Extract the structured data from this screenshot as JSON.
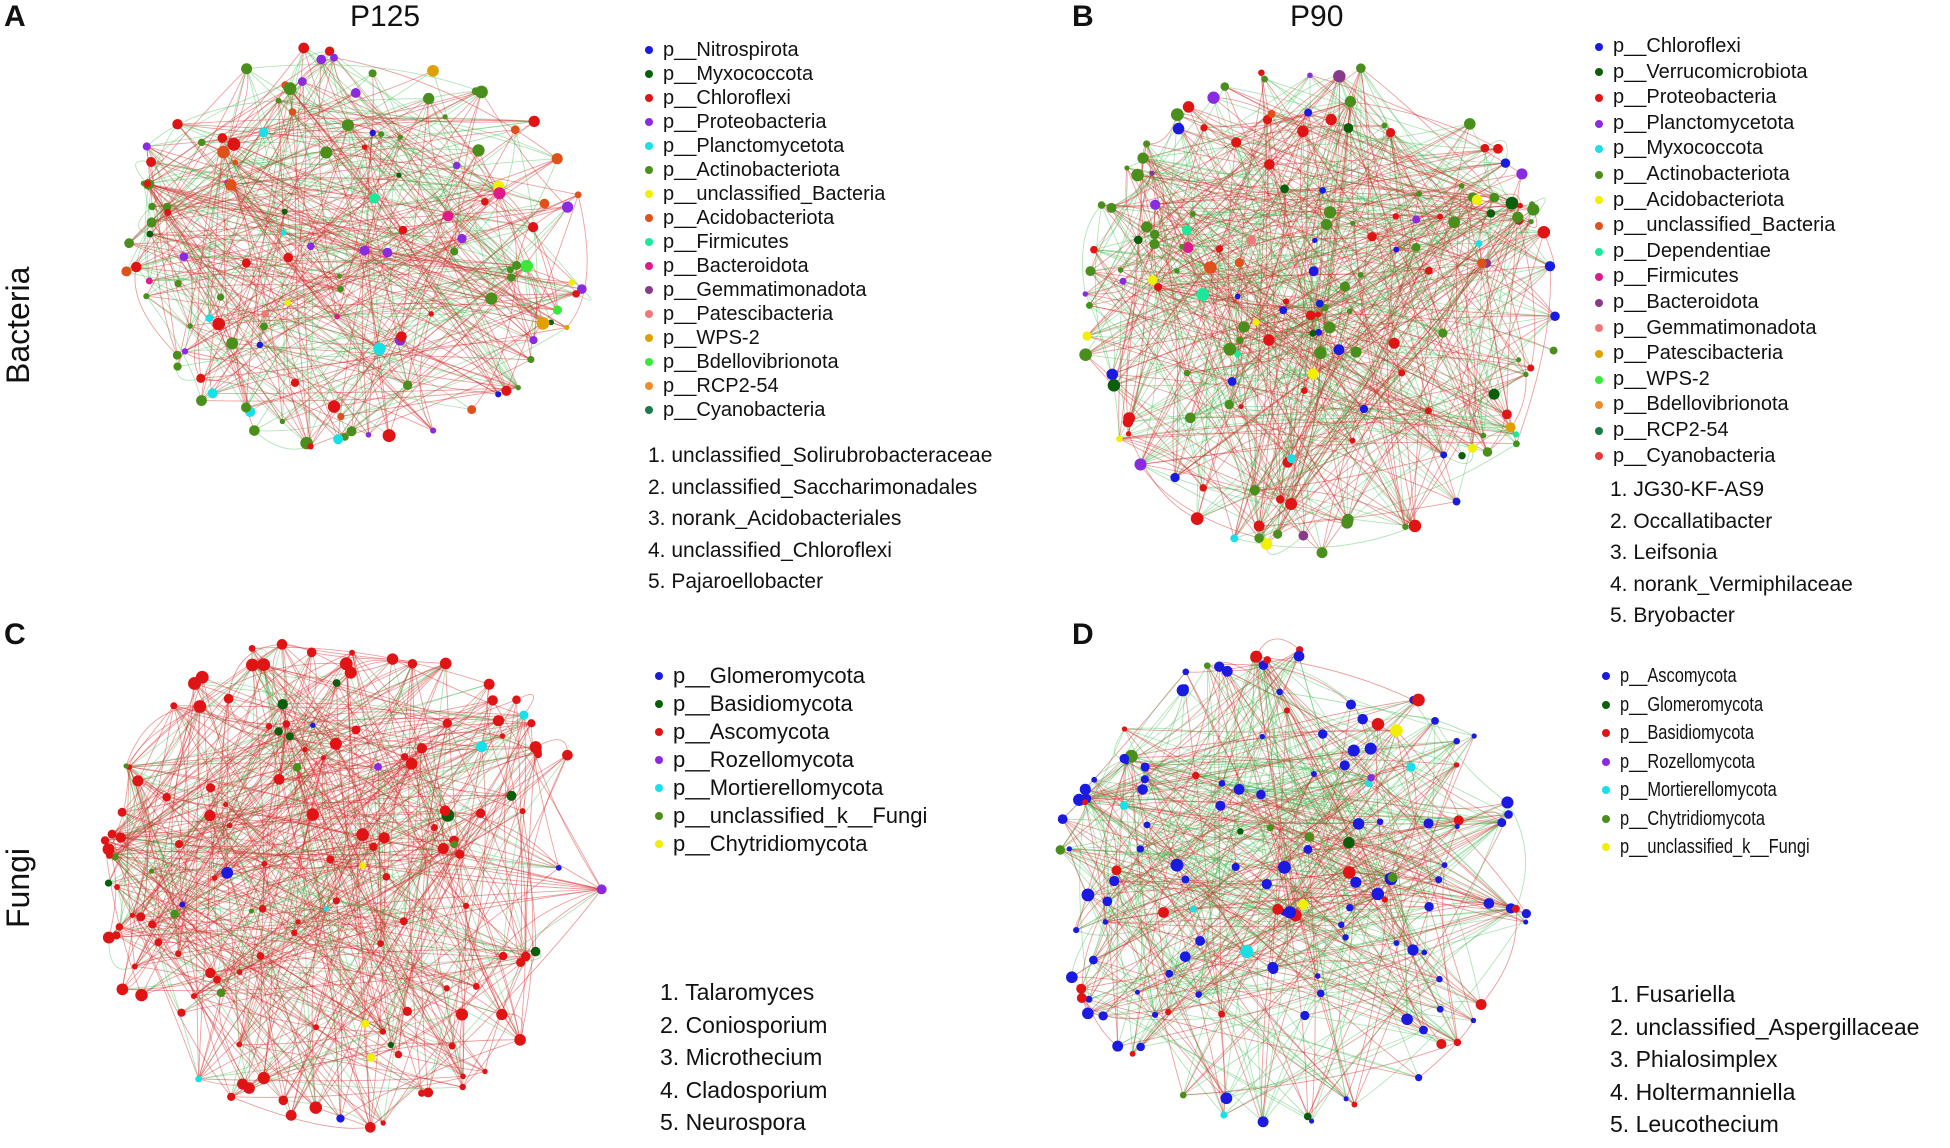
{
  "panels": [
    {
      "letter": "A",
      "title": "P125",
      "row_label": "Bacteria",
      "legend": [
        {
          "label": "p__Nitrospirota",
          "color": "#1a1ae0"
        },
        {
          "label": "p__Myxococcota",
          "color": "#0b5e0b"
        },
        {
          "label": "p__Chloroflexi",
          "color": "#e01414"
        },
        {
          "label": "p__Proteobacteria",
          "color": "#8a2be2"
        },
        {
          "label": "p__Planctomycetota",
          "color": "#19e0e6"
        },
        {
          "label": "p__Actinobacteriota",
          "color": "#4a8f1c"
        },
        {
          "label": "p__unclassified_Bacteria",
          "color": "#f0f000"
        },
        {
          "label": "p__Acidobacteriota",
          "color": "#e0501a"
        },
        {
          "label": "p__Firmicutes",
          "color": "#1ae89a"
        },
        {
          "label": "p__Bacteroidota",
          "color": "#e01a8c"
        },
        {
          "label": "p__Gemmatimonadota",
          "color": "#8a3a8a"
        },
        {
          "label": "p__Patescibacteria",
          "color": "#f07878"
        },
        {
          "label": "p__WPS-2",
          "color": "#e0a000"
        },
        {
          "label": "p__Bdellovibrionota",
          "color": "#3ae83a"
        },
        {
          "label": "p__RCP2-54",
          "color": "#f08c28"
        },
        {
          "label": "p__Cyanobacteria",
          "color": "#1a7a4a"
        }
      ],
      "taxa": [
        "1. unclassified_Solirubrobacteraceae",
        "2. unclassified_Saccharimonadales",
        "3. norank_Acidobacteriales",
        "4. unclassified_Chloroflexi",
        "5. Pajaroellobacter"
      ]
    },
    {
      "letter": "B",
      "title": "P90",
      "legend": [
        {
          "label": "p__Chloroflexi",
          "color": "#1a1ae0"
        },
        {
          "label": "p__Verrucomicrobiota",
          "color": "#0b5e0b"
        },
        {
          "label": "p__Proteobacteria",
          "color": "#e01414"
        },
        {
          "label": "p__Planctomycetota",
          "color": "#8a2be2"
        },
        {
          "label": "p__Myxococcota",
          "color": "#19e0e6"
        },
        {
          "label": "p__Actinobacteriota",
          "color": "#4a8f1c"
        },
        {
          "label": "p__Acidobacteriota",
          "color": "#f0f000"
        },
        {
          "label": "p__unclassified_Bacteria",
          "color": "#e0501a"
        },
        {
          "label": "p__Dependentiae",
          "color": "#1ae89a"
        },
        {
          "label": "p__Firmicutes",
          "color": "#e01a8c"
        },
        {
          "label": "p__Bacteroidota",
          "color": "#8a3a8a"
        },
        {
          "label": "p__Gemmatimonadota",
          "color": "#f07878"
        },
        {
          "label": "p__Patescibacteria",
          "color": "#e0a000"
        },
        {
          "label": "p__WPS-2",
          "color": "#3ae83a"
        },
        {
          "label": "p__Bdellovibrionota",
          "color": "#f08c28"
        },
        {
          "label": "p__RCP2-54",
          "color": "#1a7a4a"
        },
        {
          "label": "p__Cyanobacteria",
          "color": "#e83a3a"
        }
      ],
      "taxa": [
        "1. JG30-KF-AS9",
        "2. Occallatibacter",
        "3. Leifsonia",
        "4. norank_Vermiphilaceae",
        "5. Bryobacter"
      ]
    },
    {
      "letter": "C",
      "row_label": "Fungi",
      "legend": [
        {
          "label": "p__Glomeromycota",
          "color": "#1a1ae0"
        },
        {
          "label": "p__Basidiomycota",
          "color": "#0b5e0b"
        },
        {
          "label": "p__Ascomycota",
          "color": "#e01414"
        },
        {
          "label": "p__Rozellomycota",
          "color": "#8a2be2"
        },
        {
          "label": "p__Mortierellomycota",
          "color": "#19e0e6"
        },
        {
          "label": "p__unclassified_k__Fungi",
          "color": "#4a8f1c"
        },
        {
          "label": "p__Chytridiomycota",
          "color": "#f0f000"
        }
      ],
      "taxa": [
        "1. Talaromyces",
        "2. Coniosporium",
        "3. Microthecium",
        "4. Cladosporium",
        "5. Neurospora"
      ]
    },
    {
      "letter": "D",
      "legend": [
        {
          "label": "p__Ascomycota",
          "color": "#1a1ae0"
        },
        {
          "label": "p__Glomeromycota",
          "color": "#0b5e0b"
        },
        {
          "label": "p__Basidiomycota",
          "color": "#e01414"
        },
        {
          "label": "p__Rozellomycota",
          "color": "#8a2be2"
        },
        {
          "label": "p__Mortierellomycota",
          "color": "#19e0e6"
        },
        {
          "label": "p__Chytridiomycota",
          "color": "#4a8f1c"
        },
        {
          "label": "p__unclassified_k__Fungi",
          "color": "#f0f000"
        }
      ],
      "taxa": [
        "1. Fusariella",
        "2. unclassified_Aspergillaceae",
        "3. Phialosimplex",
        "4. Holtermanniella",
        "5. Leucothecium"
      ]
    }
  ],
  "edge_colors": {
    "positive": "#d42a2a",
    "negative": "#3cb84a"
  }
}
